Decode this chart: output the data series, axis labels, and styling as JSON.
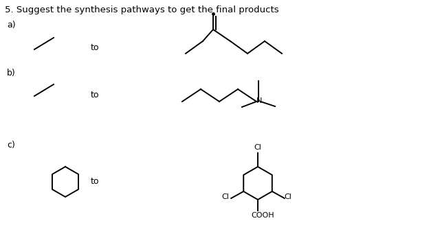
{
  "title": "5. Suggest the synthesis pathways to get the final products",
  "title_fontsize": 9.5,
  "bg_color": "#ffffff",
  "label_a": "a)",
  "label_b": "b)",
  "label_c": "c)",
  "to_text": "to",
  "label_fontsize": 9,
  "chem_fontsize": 8,
  "lw": 1.4
}
